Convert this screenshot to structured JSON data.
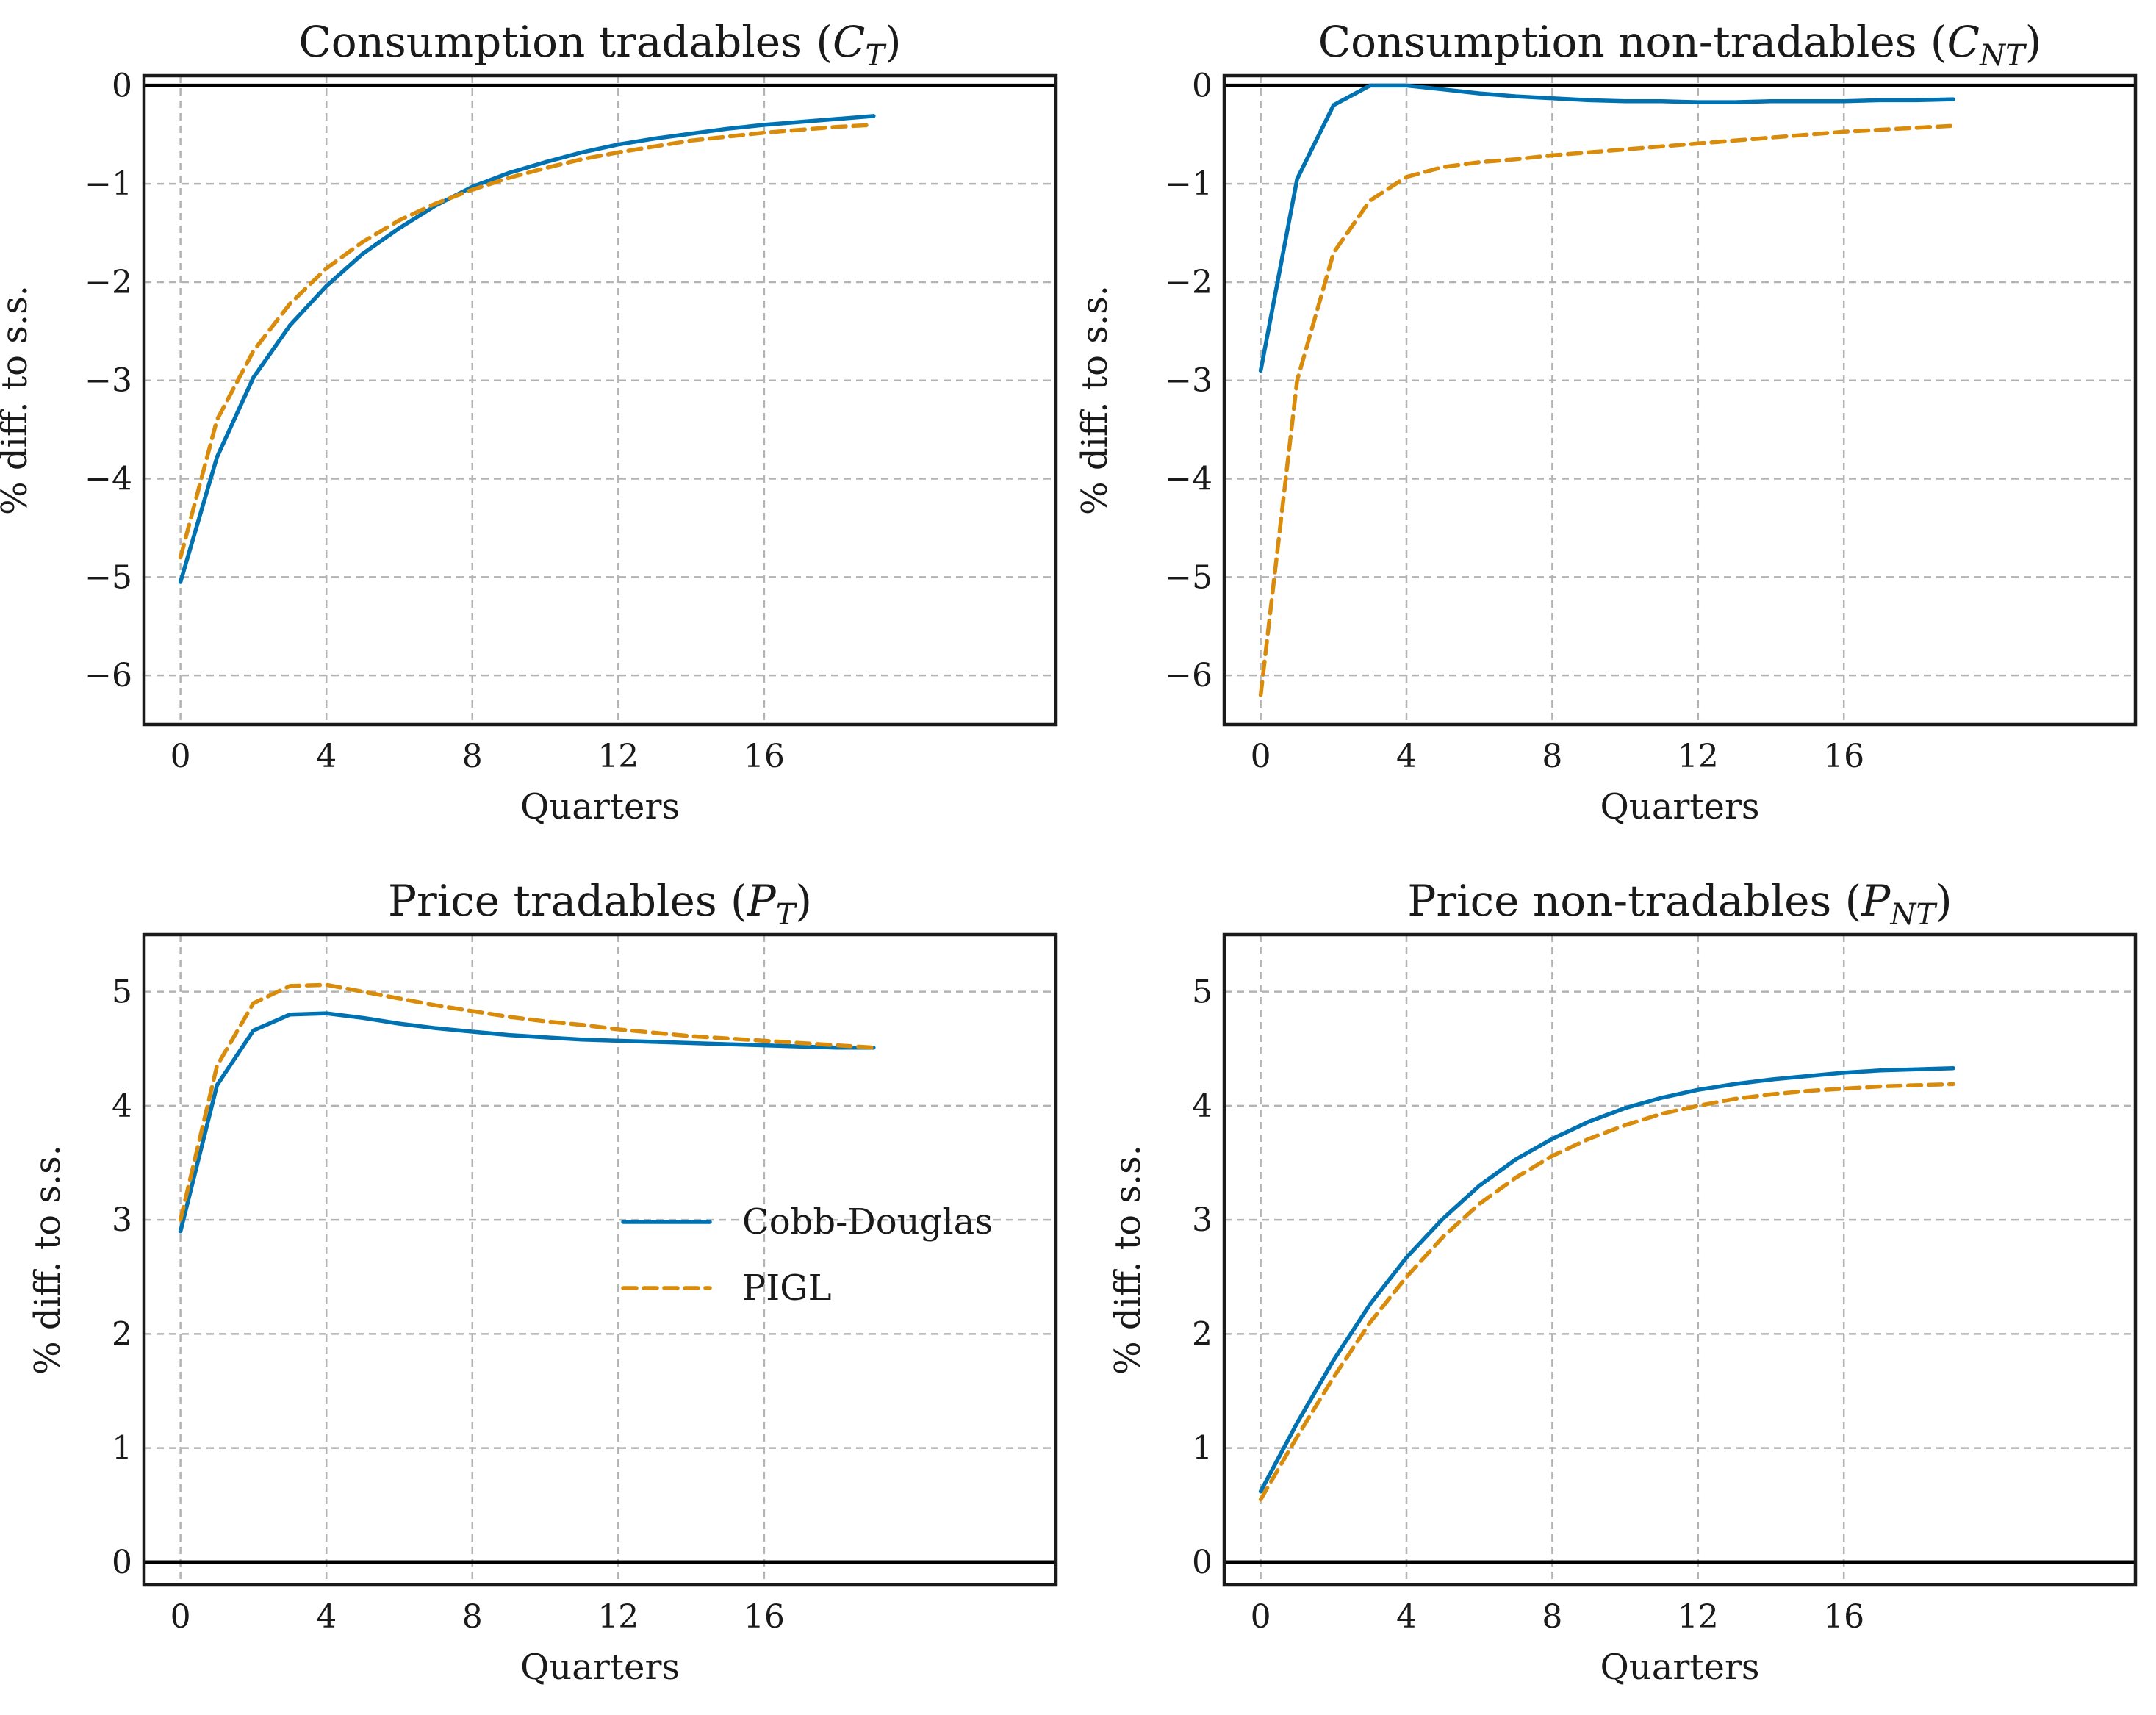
{
  "colors": {
    "cobb_douglas": "#0072b2",
    "pigl": "#d98c0c"
  },
  "legend": {
    "items": [
      "Cobb-Douglas",
      "PIGL"
    ],
    "panel": 2,
    "placement": "center-right"
  },
  "chart_data": [
    {
      "type": "line",
      "title": "Consumption tradables",
      "title_var": "C",
      "title_sub": "T",
      "xlabel": "Quarters",
      "ylabel": "% diff. to s.s.",
      "xlim": [
        -1,
        24
      ],
      "ylim": [
        -6.5,
        0.1
      ],
      "xticks": [
        0,
        4,
        8,
        12,
        16
      ],
      "yticks": [
        0,
        -1,
        -2,
        -3,
        -4,
        -5,
        -6
      ],
      "zero_line": true,
      "grid": true,
      "x": [
        0,
        1,
        2,
        3,
        4,
        5,
        6,
        7,
        8,
        9,
        10,
        11,
        12,
        13,
        14,
        15,
        16,
        17,
        18,
        19
      ],
      "series": [
        {
          "name": "Cobb-Douglas",
          "style": "solid",
          "values": [
            -5.05,
            -3.78,
            -2.97,
            -2.44,
            -2.04,
            -1.71,
            -1.45,
            -1.22,
            -1.03,
            -0.89,
            -0.78,
            -0.68,
            -0.6,
            -0.54,
            -0.49,
            -0.44,
            -0.4,
            -0.37,
            -0.34,
            -0.31
          ]
        },
        {
          "name": "PIGL",
          "style": "dashed",
          "values": [
            -4.8,
            -3.4,
            -2.7,
            -2.22,
            -1.86,
            -1.59,
            -1.37,
            -1.2,
            -1.06,
            -0.94,
            -0.84,
            -0.75,
            -0.68,
            -0.62,
            -0.56,
            -0.52,
            -0.48,
            -0.45,
            -0.42,
            -0.4
          ]
        }
      ]
    },
    {
      "type": "line",
      "title": "Consumption non-tradables",
      "title_var": "C",
      "title_sub": "NT",
      "xlabel": "Quarters",
      "ylabel": "% diff. to s.s.",
      "xlim": [
        -1,
        24
      ],
      "ylim": [
        -6.5,
        0.1
      ],
      "xticks": [
        0,
        4,
        8,
        12,
        16
      ],
      "yticks": [
        0,
        -1,
        -2,
        -3,
        -4,
        -5,
        -6
      ],
      "zero_line": true,
      "grid": true,
      "x": [
        0,
        1,
        2,
        3,
        4,
        5,
        6,
        7,
        8,
        9,
        10,
        11,
        12,
        13,
        14,
        15,
        16,
        17,
        18,
        19
      ],
      "series": [
        {
          "name": "Cobb-Douglas",
          "style": "solid",
          "values": [
            -2.9,
            -0.95,
            -0.2,
            0.0,
            0.0,
            -0.04,
            -0.08,
            -0.11,
            -0.13,
            -0.15,
            -0.16,
            -0.16,
            -0.17,
            -0.17,
            -0.16,
            -0.16,
            -0.16,
            -0.15,
            -0.15,
            -0.14
          ]
        },
        {
          "name": "PIGL",
          "style": "dashed",
          "values": [
            -6.2,
            -3.0,
            -1.7,
            -1.17,
            -0.93,
            -0.83,
            -0.78,
            -0.75,
            -0.71,
            -0.68,
            -0.65,
            -0.62,
            -0.59,
            -0.56,
            -0.53,
            -0.5,
            -0.47,
            -0.45,
            -0.43,
            -0.41
          ]
        }
      ]
    },
    {
      "type": "line",
      "title": "Price tradables",
      "title_var": "P",
      "title_sub": "T",
      "xlabel": "Quarters",
      "ylabel": "% diff. to s.s.",
      "xlim": [
        -1,
        24
      ],
      "ylim": [
        -0.2,
        5.5
      ],
      "xticks": [
        0,
        4,
        8,
        12,
        16
      ],
      "yticks": [
        0,
        1,
        2,
        3,
        4,
        5
      ],
      "zero_line": true,
      "grid": true,
      "x": [
        0,
        1,
        2,
        3,
        4,
        5,
        6,
        7,
        8,
        9,
        10,
        11,
        12,
        13,
        14,
        15,
        16,
        17,
        18,
        19
      ],
      "series": [
        {
          "name": "Cobb-Douglas",
          "style": "solid",
          "values": [
            2.9,
            4.18,
            4.66,
            4.8,
            4.81,
            4.77,
            4.72,
            4.68,
            4.65,
            4.62,
            4.6,
            4.58,
            4.57,
            4.56,
            4.55,
            4.54,
            4.53,
            4.52,
            4.51,
            4.51
          ]
        },
        {
          "name": "PIGL",
          "style": "dashed",
          "values": [
            3.0,
            4.35,
            4.9,
            5.05,
            5.06,
            5.0,
            4.94,
            4.88,
            4.83,
            4.78,
            4.74,
            4.71,
            4.67,
            4.64,
            4.61,
            4.59,
            4.57,
            4.55,
            4.53,
            4.51
          ]
        }
      ]
    },
    {
      "type": "line",
      "title": "Price non-tradables",
      "title_var": "P",
      "title_sub": "NT",
      "xlabel": "Quarters",
      "ylabel": "% diff. to s.s.",
      "xlim": [
        -1,
        24
      ],
      "ylim": [
        -0.2,
        5.5
      ],
      "xticks": [
        0,
        4,
        8,
        12,
        16
      ],
      "yticks": [
        0,
        1,
        2,
        3,
        4,
        5
      ],
      "zero_line": true,
      "grid": true,
      "x": [
        0,
        1,
        2,
        3,
        4,
        5,
        6,
        7,
        8,
        9,
        10,
        11,
        12,
        13,
        14,
        15,
        16,
        17,
        18,
        19
      ],
      "series": [
        {
          "name": "Cobb-Douglas",
          "style": "solid",
          "values": [
            0.62,
            1.22,
            1.77,
            2.26,
            2.67,
            3.01,
            3.3,
            3.53,
            3.71,
            3.86,
            3.98,
            4.07,
            4.14,
            4.19,
            4.23,
            4.26,
            4.29,
            4.31,
            4.32,
            4.33
          ]
        },
        {
          "name": "PIGL",
          "style": "dashed",
          "values": [
            0.55,
            1.1,
            1.62,
            2.1,
            2.5,
            2.85,
            3.14,
            3.37,
            3.56,
            3.71,
            3.83,
            3.93,
            4.0,
            4.06,
            4.1,
            4.13,
            4.15,
            4.17,
            4.18,
            4.19
          ]
        }
      ]
    }
  ]
}
